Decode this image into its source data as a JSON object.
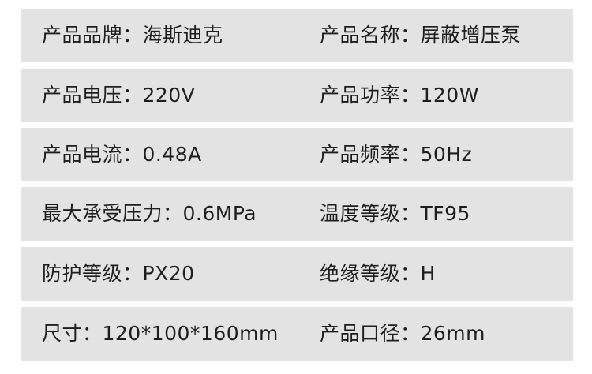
{
  "specs": [
    {
      "left": "产品品牌：海斯迪克",
      "right": "产品名称：屏蔽增压泵"
    },
    {
      "left": "产品电压：220V",
      "right": "产品功率：120W"
    },
    {
      "left": "产品电流：0.48A",
      "right": "产品频率：50Hz"
    },
    {
      "left": "最大承受压力：0.6MPa",
      "right": "温度等级：TF95"
    },
    {
      "left": "防护等级：PX20",
      "right": "绝缘等级：H"
    },
    {
      "left": "尺寸：120*100*160mm",
      "right": "产品口径：26mm"
    }
  ],
  "colors": {
    "row_background": "#e3e3e3",
    "text": "#1e1e1e"
  }
}
